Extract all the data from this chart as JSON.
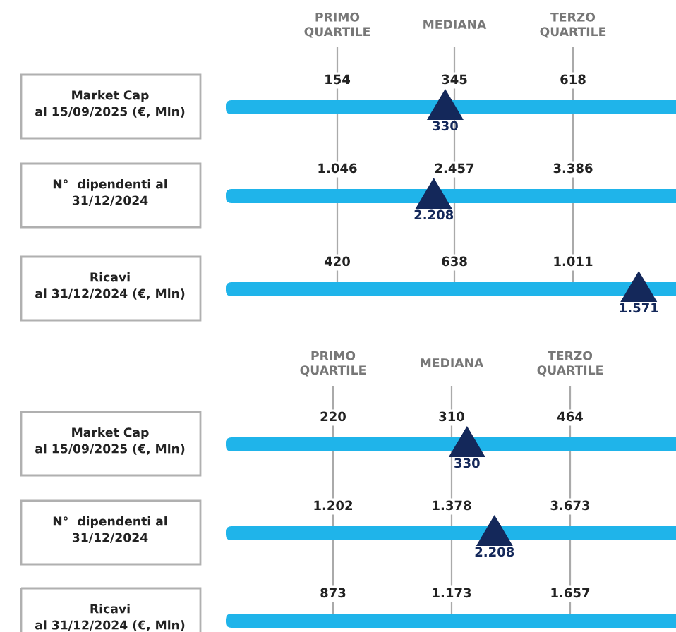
{
  "chart_data": [
    {
      "type": "other",
      "annotations": [
        "PRIMO\nQUARTILE",
        "MEDIANA",
        "TERZO\nQUARTILE"
      ],
      "categories": [
        "Market Cap\nal 15/09/2025 (€, Mln)",
        "N°  dipendenti al\n31/12/2024",
        "Ricavi\nal 31/12/2024 (€, Mln)"
      ],
      "series": [
        {
          "type": "other",
          "values": [
            154,
            1046,
            420
          ],
          "value_labels": [
            "154",
            "1.046",
            "420"
          ]
        },
        {
          "type": "other",
          "values": [
            345,
            2457,
            638
          ],
          "value_labels": [
            "345",
            "2.457",
            "638"
          ]
        },
        {
          "type": "other",
          "values": [
            618,
            3386,
            1011
          ],
          "value_labels": [
            "618",
            "3.386",
            "1.011"
          ]
        },
        {
          "type": "scatter",
          "color": "#14285a",
          "values": [
            330,
            2208,
            1571
          ],
          "value_labels": [
            "330",
            "2.208",
            "1.571"
          ]
        }
      ]
    },
    {
      "type": "other",
      "annotations": [
        "PRIMO\nQUARTILE",
        "MEDIANA",
        "TERZO\nQUARTILE"
      ],
      "categories": [
        "Market Cap\nal 15/09/2025 (€, Mln)",
        "N°  dipendenti al\n31/12/2024",
        "Ricavi\nal 31/12/2024 (€, Mln)"
      ],
      "series": [
        {
          "type": "other",
          "values": [
            220,
            1202,
            873
          ],
          "value_labels": [
            "220",
            "1.202",
            "873"
          ]
        },
        {
          "type": "other",
          "values": [
            310,
            1378,
            1173
          ],
          "value_labels": [
            "310",
            "1.378",
            "1.173"
          ]
        },
        {
          "type": "other",
          "values": [
            464,
            3673,
            1657
          ],
          "value_labels": [
            "464",
            "3.673",
            "1.657"
          ]
        },
        {
          "type": "scatter",
          "color": "#14285a",
          "values": [
            330,
            2208,
            null
          ],
          "value_labels": [
            "330",
            "2.208",
            null
          ]
        }
      ]
    }
  ]
}
